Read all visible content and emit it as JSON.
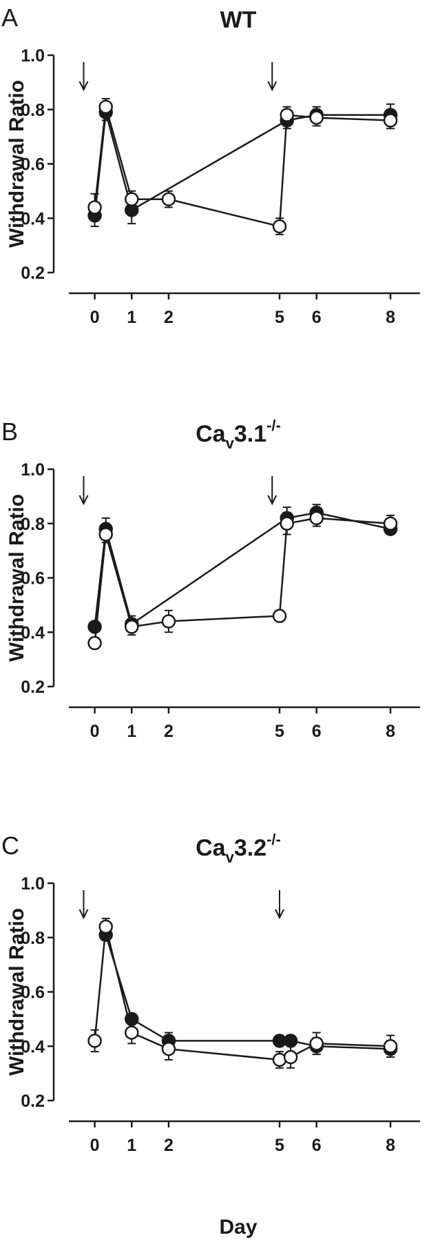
{
  "x_axis_title": "Day",
  "chart_data": [
    {
      "type": "line",
      "panel_label": "A",
      "title": "WT",
      "ylabel": "Withdrawal Ratio",
      "xlabel": "",
      "ylim": [
        0.2,
        1.0
      ],
      "yticks": [
        0.2,
        0.4,
        0.6,
        0.8,
        1.0
      ],
      "xticks": [
        0,
        1,
        2,
        5,
        6,
        8
      ],
      "arrows_at": [
        -0.3,
        4.8
      ],
      "series": [
        {
          "marker": "filled",
          "points": [
            {
              "x": 0,
              "y": 0.41,
              "err": 0.04
            },
            {
              "x": 0.3,
              "y": 0.79,
              "err": 0.03
            },
            {
              "x": 1,
              "y": 0.43,
              "err": 0.05
            },
            {
              "x": 5.2,
              "y": 0.76,
              "err": 0.03
            },
            {
              "x": 6,
              "y": 0.78,
              "err": 0.03
            },
            {
              "x": 8,
              "y": 0.78,
              "err": 0.04
            }
          ]
        },
        {
          "marker": "open",
          "points": [
            {
              "x": 0,
              "y": 0.44,
              "err": 0.05
            },
            {
              "x": 0.3,
              "y": 0.81,
              "err": 0.03
            },
            {
              "x": 1,
              "y": 0.47,
              "err": 0.03
            },
            {
              "x": 2,
              "y": 0.47,
              "err": 0.03
            },
            {
              "x": 5,
              "y": 0.37,
              "err": 0.03
            },
            {
              "x": 5.2,
              "y": 0.78,
              "err": 0.03
            },
            {
              "x": 6,
              "y": 0.77,
              "err": 0.03
            },
            {
              "x": 8,
              "y": 0.76,
              "err": 0.03
            }
          ]
        }
      ]
    },
    {
      "type": "line",
      "panel_label": "B",
      "title": "Ca",
      "title_sub": "v",
      "title_rest": "3.1",
      "title_sup": "-/-",
      "ylabel": "Withdrawal Ratio",
      "xlabel": "",
      "ylim": [
        0.2,
        1.0
      ],
      "yticks": [
        0.2,
        0.4,
        0.6,
        0.8,
        1.0
      ],
      "xticks": [
        0,
        1,
        2,
        5,
        6,
        8
      ],
      "arrows_at": [
        -0.3,
        4.8
      ],
      "series": [
        {
          "marker": "filled",
          "points": [
            {
              "x": 0,
              "y": 0.42,
              "err": 0.0
            },
            {
              "x": 0.3,
              "y": 0.78,
              "err": 0.04
            },
            {
              "x": 1,
              "y": 0.43,
              "err": 0.03
            },
            {
              "x": 5.2,
              "y": 0.82,
              "err": 0.04
            },
            {
              "x": 6,
              "y": 0.84,
              "err": 0.03
            },
            {
              "x": 8,
              "y": 0.78,
              "err": 0.0
            }
          ]
        },
        {
          "marker": "open",
          "points": [
            {
              "x": 0,
              "y": 0.36,
              "err": 0.02
            },
            {
              "x": 0.3,
              "y": 0.76,
              "err": 0.03
            },
            {
              "x": 1,
              "y": 0.42,
              "err": 0.03
            },
            {
              "x": 2,
              "y": 0.44,
              "err": 0.04
            },
            {
              "x": 5,
              "y": 0.46,
              "err": 0.02
            },
            {
              "x": 5.2,
              "y": 0.8,
              "err": 0.04
            },
            {
              "x": 6,
              "y": 0.82,
              "err": 0.03
            },
            {
              "x": 8,
              "y": 0.8,
              "err": 0.03
            }
          ]
        }
      ]
    },
    {
      "type": "line",
      "panel_label": "C",
      "title": "Ca",
      "title_sub": "v",
      "title_rest": "3.2",
      "title_sup": "-/-",
      "ylabel": "Withdrawal Ratio",
      "xlabel": "Day",
      "ylim": [
        0.2,
        1.0
      ],
      "yticks": [
        0.2,
        0.4,
        0.6,
        0.8,
        1.0
      ],
      "xticks": [
        0,
        1,
        2,
        5,
        6,
        8
      ],
      "arrows_at": [
        -0.3,
        5.0
      ],
      "series": [
        {
          "marker": "filled",
          "points": [
            {
              "x": 0.3,
              "y": 0.81,
              "err": 0.02
            },
            {
              "x": 1,
              "y": 0.5,
              "err": 0.02
            },
            {
              "x": 2,
              "y": 0.42,
              "err": 0.03
            },
            {
              "x": 5,
              "y": 0.42,
              "err": 0.02
            },
            {
              "x": 5.3,
              "y": 0.42,
              "err": 0.02
            },
            {
              "x": 6,
              "y": 0.4,
              "err": 0.03
            },
            {
              "x": 8,
              "y": 0.39,
              "err": 0.03
            }
          ]
        },
        {
          "marker": "open",
          "points": [
            {
              "x": 0,
              "y": 0.42,
              "err": 0.04
            },
            {
              "x": 0.3,
              "y": 0.84,
              "err": 0.03
            },
            {
              "x": 1,
              "y": 0.45,
              "err": 0.04
            },
            {
              "x": 2,
              "y": 0.39,
              "err": 0.04
            },
            {
              "x": 5,
              "y": 0.35,
              "err": 0.03
            },
            {
              "x": 5.3,
              "y": 0.36,
              "err": 0.04
            },
            {
              "x": 6,
              "y": 0.41,
              "err": 0.04
            },
            {
              "x": 8,
              "y": 0.4,
              "err": 0.04
            }
          ]
        }
      ]
    }
  ]
}
